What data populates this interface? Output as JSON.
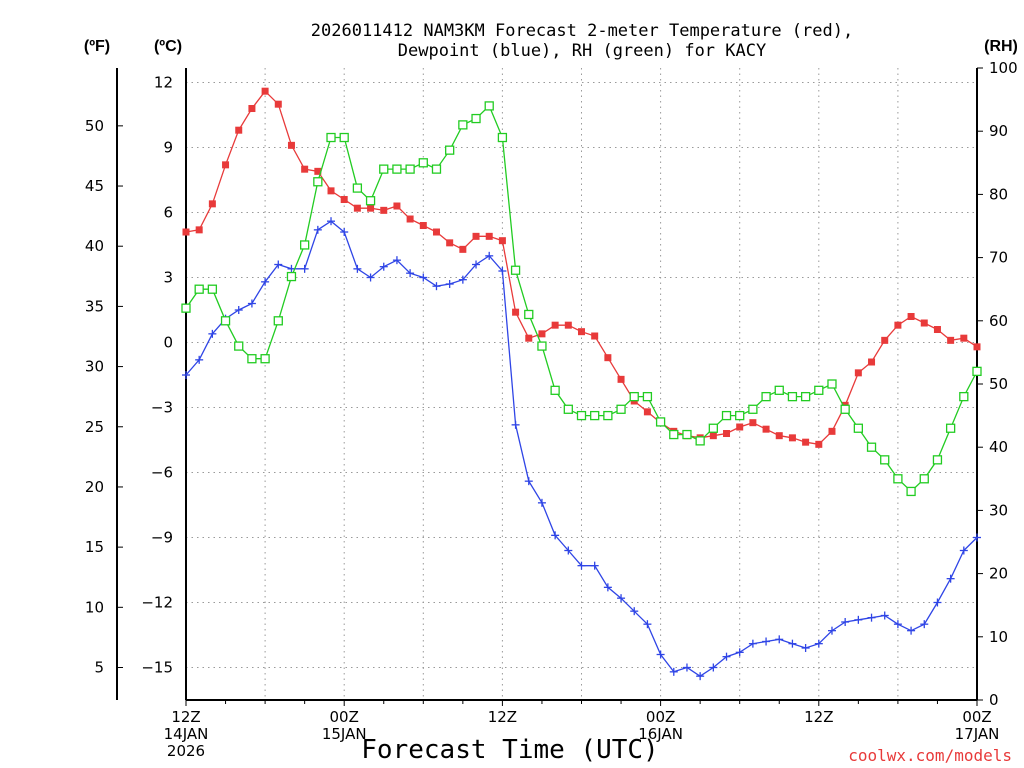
{
  "chart_data": {
    "type": "line",
    "title_line1": "2026011412 NAM3KM Forecast 2-meter Temperature (red),",
    "title_line2": "Dewpoint (blue), RH (green) for KACY",
    "xlabel": "Forecast Time (UTC)",
    "credit": "coolwx.com/models",
    "units": {
      "fahrenheit": "(ºF)",
      "celsius": "(ºC)",
      "rh": "(RH)"
    },
    "x_range_hours": [
      0,
      60
    ],
    "x_ticks": [
      {
        "hour": 0,
        "lines": [
          "12Z",
          "14JAN",
          "2026"
        ]
      },
      {
        "hour": 12,
        "lines": [
          "00Z",
          "15JAN"
        ]
      },
      {
        "hour": 24,
        "lines": [
          "12Z"
        ]
      },
      {
        "hour": 36,
        "lines": [
          "00Z",
          "16JAN"
        ]
      },
      {
        "hour": 48,
        "lines": [
          "12Z"
        ]
      },
      {
        "hour": 60,
        "lines": [
          "00Z",
          "17JAN"
        ]
      }
    ],
    "celsius_axis": {
      "min": -16.5,
      "max": 12.67,
      "ticks": [
        12,
        9,
        6,
        3,
        0,
        -3,
        -6,
        -9,
        -12,
        -15
      ]
    },
    "fahrenheit_axis": {
      "ticks": [
        50,
        45,
        40,
        35,
        30,
        25,
        20,
        15,
        10,
        5
      ]
    },
    "rh_axis": {
      "min": 0,
      "max": 100,
      "ticks": [
        100,
        90,
        80,
        70,
        60,
        50,
        40,
        30,
        20,
        10,
        0
      ]
    },
    "series": [
      {
        "name": "Temperature",
        "color": "#e83a3a",
        "marker": "filled-square",
        "axis": "celsius",
        "values": [
          5.1,
          5.2,
          6.4,
          8.2,
          9.8,
          10.8,
          11.6,
          11.0,
          9.1,
          8.0,
          7.9,
          7.0,
          6.6,
          6.2,
          6.2,
          6.1,
          6.3,
          5.7,
          5.4,
          5.1,
          4.6,
          4.3,
          4.9,
          4.9,
          4.7,
          1.4,
          0.2,
          0.4,
          0.8,
          0.8,
          0.5,
          0.3,
          -0.7,
          -1.7,
          -2.7,
          -3.2,
          -3.7,
          -4.1,
          -4.3,
          -4.4,
          -4.3,
          -4.2,
          -3.9,
          -3.7,
          -4.0,
          -4.3,
          -4.4,
          -4.6,
          -4.7,
          -4.1,
          -2.9,
          -1.4,
          -0.9,
          0.1,
          0.8,
          1.2,
          0.9,
          0.6,
          0.1,
          0.2,
          -0.2
        ]
      },
      {
        "name": "Dewpoint",
        "color": "#2f45e6",
        "marker": "plus",
        "axis": "celsius",
        "values": [
          -1.5,
          -0.8,
          0.4,
          1.1,
          1.5,
          1.8,
          2.8,
          3.6,
          3.4,
          3.4,
          5.2,
          5.6,
          5.1,
          3.4,
          3.0,
          3.5,
          3.8,
          3.2,
          3.0,
          2.6,
          2.7,
          2.9,
          3.6,
          4.0,
          3.3,
          -3.8,
          -6.4,
          -7.4,
          -8.9,
          -9.6,
          -10.3,
          -10.3,
          -11.3,
          -11.8,
          -12.4,
          -13.0,
          -14.4,
          -15.2,
          -15.0,
          -15.4,
          -15.0,
          -14.5,
          -14.3,
          -13.9,
          -13.8,
          -13.7,
          -13.9,
          -14.1,
          -13.9,
          -13.3,
          -12.9,
          -12.8,
          -12.7,
          -12.6,
          -13.0,
          -13.3,
          -13.0,
          -12.0,
          -10.9,
          -9.6,
          -9.0
        ]
      },
      {
        "name": "RH",
        "color": "#22cc22",
        "marker": "open-square",
        "axis": "rh",
        "values": [
          62,
          65,
          65,
          60,
          56,
          54,
          54,
          60,
          67,
          72,
          82,
          89,
          89,
          81,
          79,
          84,
          84,
          84,
          85,
          84,
          87,
          91,
          92,
          94,
          89,
          68,
          61,
          56,
          49,
          46,
          45,
          45,
          45,
          46,
          48,
          48,
          44,
          42,
          42,
          41,
          43,
          45,
          45,
          46,
          48,
          49,
          48,
          48,
          49,
          50,
          46,
          43,
          40,
          38,
          35,
          33,
          35,
          38,
          43,
          48,
          52
        ]
      }
    ]
  }
}
